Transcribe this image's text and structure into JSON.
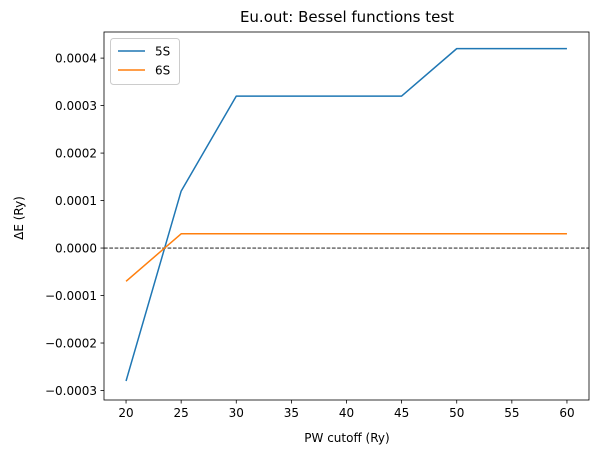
{
  "chart_data": {
    "type": "line",
    "title": "Eu.out: Bessel functions test",
    "xlabel": "PW cutoff (Ry)",
    "ylabel": "ΔE (Ry)",
    "x": [
      20,
      25,
      30,
      35,
      40,
      45,
      50,
      55,
      60
    ],
    "xlim": [
      18,
      62
    ],
    "ylim": [
      -0.00032,
      0.000455
    ],
    "xticks": [
      20,
      25,
      30,
      35,
      40,
      45,
      50,
      55,
      60
    ],
    "yticks": [
      -0.0003,
      -0.0002,
      -0.0001,
      0.0,
      0.0001,
      0.0002,
      0.0003,
      0.0004
    ],
    "ytick_labels": [
      "−0.0003",
      "−0.0002",
      "−0.0001",
      "0.0000",
      "0.0001",
      "0.0002",
      "0.0003",
      "0.0004"
    ],
    "reference_line": {
      "y": 0.0,
      "style": "dashed",
      "color": "#000000"
    },
    "legend_position": "top-left",
    "grid": false,
    "series": [
      {
        "name": "5S",
        "color": "#1f77b4",
        "values": [
          -0.00028,
          0.00012,
          0.00032,
          0.00032,
          0.00032,
          0.00032,
          0.00042,
          0.00042,
          0.00042
        ]
      },
      {
        "name": "6S",
        "color": "#ff7f0e",
        "values": [
          -7e-05,
          3e-05,
          3e-05,
          3e-05,
          3e-05,
          3e-05,
          3e-05,
          3e-05,
          3e-05
        ]
      }
    ]
  }
}
